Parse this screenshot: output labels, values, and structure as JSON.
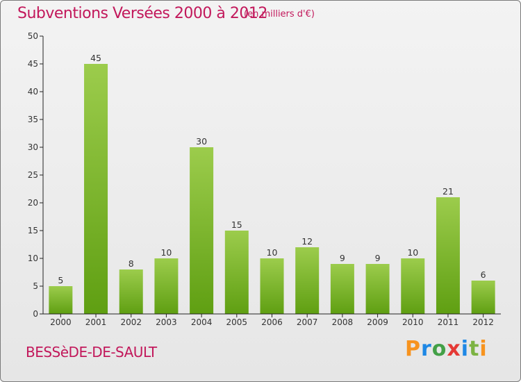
{
  "header": {
    "title": "Subventions Versées 2000 à 2012",
    "subtitle": "(en milliers d'€)"
  },
  "footer": {
    "commune": "BESSèDE-DE-SAULT",
    "brand_letters": [
      "P",
      "r",
      "o",
      "x",
      "i",
      "t",
      "i"
    ],
    "brand_colors": [
      "#f7931e",
      "#1e88e5",
      "#43a047",
      "#e53935",
      "#1e88e5",
      "#7cb342",
      "#f7931e"
    ]
  },
  "colors": {
    "bar_top": "#9ccc4c",
    "bar_bottom": "#5f9f12",
    "axis": "#222222",
    "grid_tick": "#222222",
    "accent": "#c2185b"
  },
  "chart_data": {
    "type": "bar",
    "title": "Subventions Versées 2000 à 2012",
    "subtitle": "(en milliers d'€)",
    "categories": [
      "2000",
      "2001",
      "2002",
      "2003",
      "2004",
      "2005",
      "2006",
      "2007",
      "2008",
      "2009",
      "2010",
      "2011",
      "2012"
    ],
    "values": [
      5,
      45,
      8,
      10,
      30,
      15,
      10,
      12,
      9,
      9,
      10,
      21,
      6
    ],
    "ylim": [
      0,
      50
    ],
    "yticks": [
      0,
      5,
      10,
      15,
      20,
      25,
      30,
      35,
      40,
      45,
      50
    ],
    "xlabel": "",
    "ylabel": "",
    "grid": false,
    "legend": "none"
  }
}
